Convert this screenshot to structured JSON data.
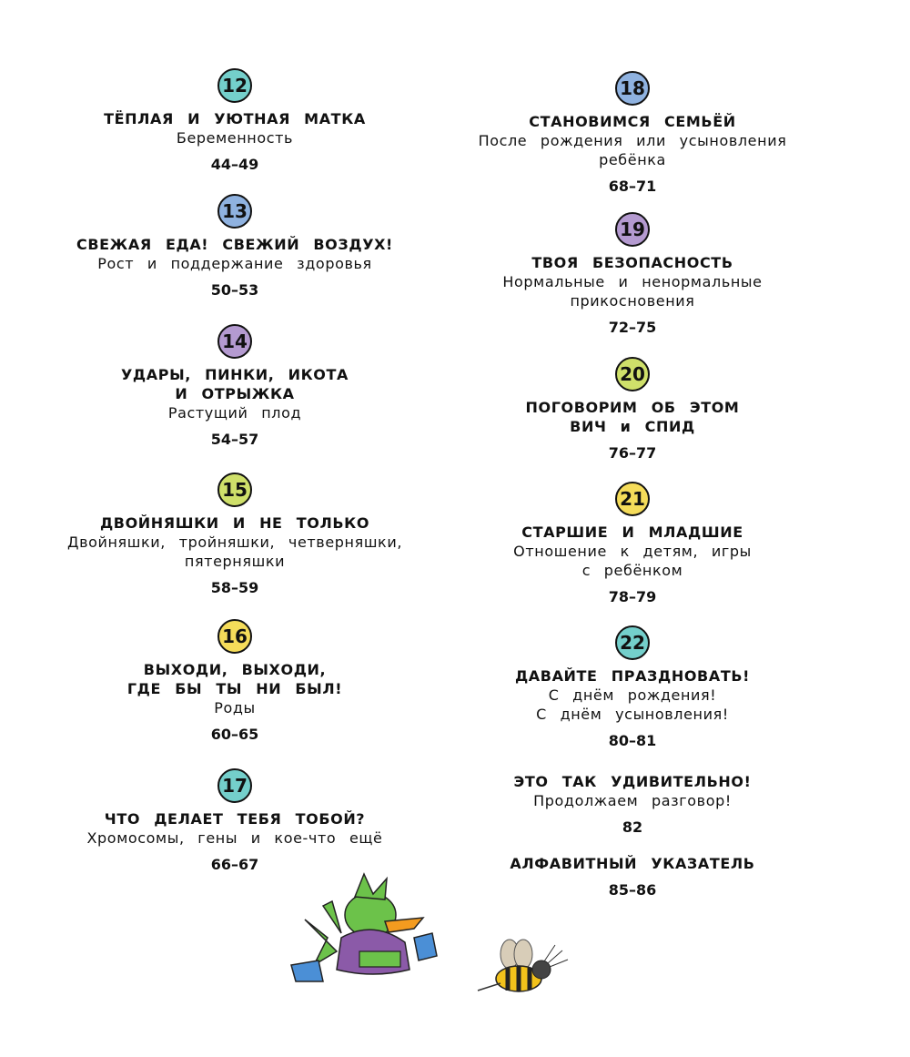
{
  "colors": {
    "teal": "#74cfcb",
    "blue": "#8fb2e0",
    "purple": "#b49ad0",
    "lime": "#cfe06a",
    "yellow": "#f5dc5a"
  },
  "left_column": [
    {
      "number": "12",
      "color": "teal",
      "title": [
        "ТЁПЛАЯ И УЮТНАЯ МАТКА"
      ],
      "subtitle": [
        "Беременность"
      ],
      "pages": "44–49"
    },
    {
      "number": "13",
      "color": "blue",
      "title": [
        "СВЕЖАЯ ЕДА! СВЕЖИЙ ВОЗДУХ!"
      ],
      "subtitle": [
        "Рост и поддержание здоровья"
      ],
      "pages": "50–53"
    },
    {
      "number": "14",
      "color": "purple",
      "title": [
        "УДАРЫ, ПИНКИ, ИКОТА",
        "И ОТРЫЖКА"
      ],
      "subtitle": [
        "Растущий плод"
      ],
      "pages": "54–57"
    },
    {
      "number": "15",
      "color": "lime",
      "title": [
        "ДВОЙНЯШКИ И НЕ ТОЛЬКО"
      ],
      "subtitle": [
        "Двойняшки, тройняшки, четверняшки,",
        "пятерняшки"
      ],
      "pages": "58–59"
    },
    {
      "number": "16",
      "color": "yellow",
      "title": [
        "ВЫХОДИ, ВЫХОДИ,",
        "ГДЕ БЫ ТЫ НИ БЫЛ!"
      ],
      "subtitle": [
        "Роды"
      ],
      "pages": "60–65"
    },
    {
      "number": "17",
      "color": "teal",
      "title": [
        "ЧТО ДЕЛАЕТ ТЕБЯ ТОБОЙ?"
      ],
      "subtitle": [
        "Хромосомы, гены и кое-что ещё"
      ],
      "pages": "66–67"
    }
  ],
  "right_column": [
    {
      "number": "18",
      "color": "blue",
      "title": [
        "СТАНОВИМСЯ СЕМЬЁЙ"
      ],
      "subtitle": [
        "После рождения или усыновления",
        "ребёнка"
      ],
      "pages": "68–71"
    },
    {
      "number": "19",
      "color": "purple",
      "title": [
        "ТВОЯ БЕЗОПАСНОСТЬ"
      ],
      "subtitle": [
        "Нормальные и ненормальные",
        "прикосновения"
      ],
      "pages": "72–75"
    },
    {
      "number": "20",
      "color": "lime",
      "title": [
        "ПОГОВОРИМ ОБ ЭТОМ",
        "ВИЧ и СПИД"
      ],
      "subtitle": [],
      "pages": "76–77"
    },
    {
      "number": "21",
      "color": "yellow",
      "title": [
        "СТАРШИЕ И МЛАДШИЕ"
      ],
      "subtitle": [
        "Отношение к детям, игры",
        "с ребёнком"
      ],
      "pages": "78–79"
    },
    {
      "number": "22",
      "color": "teal",
      "title": [
        "ДАВАЙТЕ ПРАЗДНОВАТЬ!"
      ],
      "subtitle": [
        "С днём рождения!",
        "С днём усыновления!"
      ],
      "pages": "80–81"
    },
    {
      "number": null,
      "color": null,
      "title": [
        "ЭТО ТАК УДИВИТЕЛЬНО!"
      ],
      "subtitle": [
        "Продолжаем разговор!"
      ],
      "pages": "82"
    },
    {
      "number": null,
      "color": null,
      "title": [
        "АЛФАВИТНЫЙ УКАЗАТЕЛЬ"
      ],
      "subtitle": [],
      "pages": "85–86"
    }
  ],
  "illustrations": [
    "bird-character-in-purple-robe",
    "bee-character"
  ]
}
